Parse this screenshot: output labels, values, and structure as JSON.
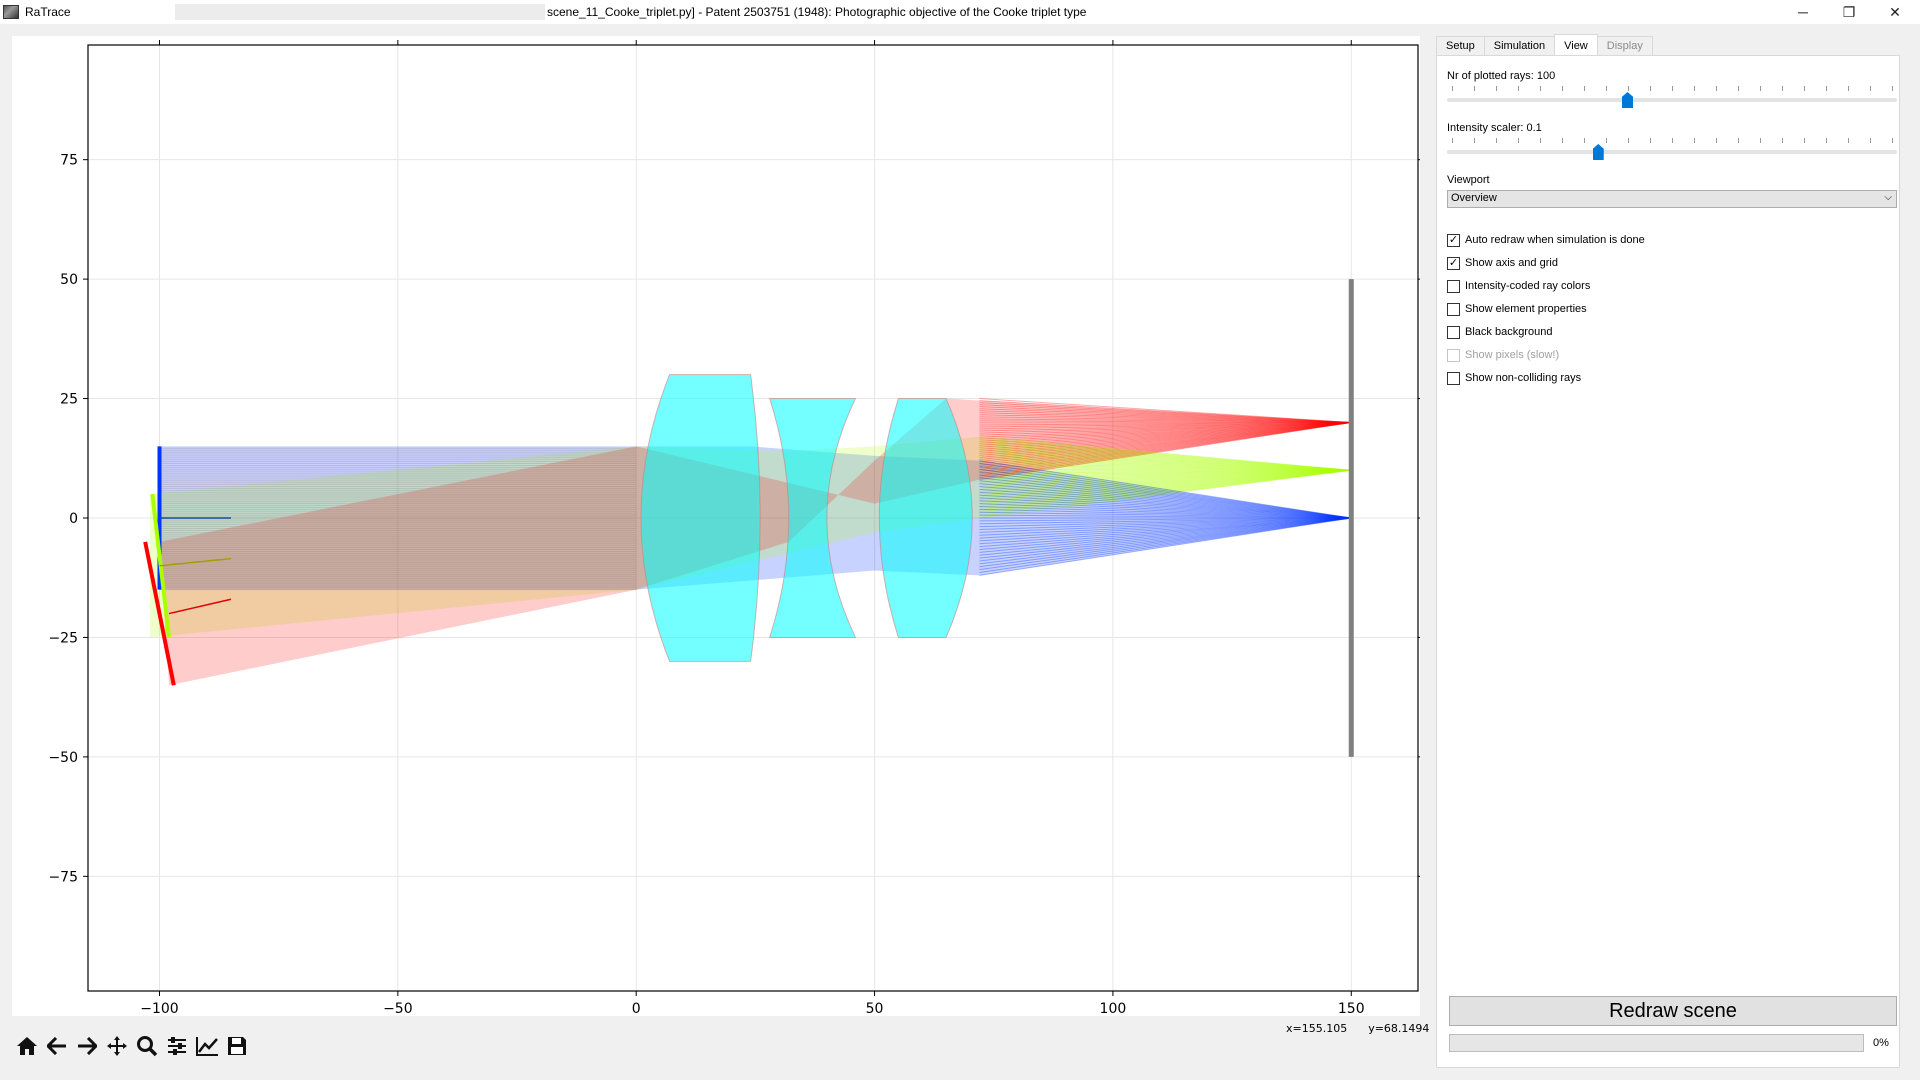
{
  "window": {
    "app_name": "RaTrace",
    "title": "scene_11_Cooke_triplet.py]  -  Patent 2503751 (1948): Photographic objective of the Cooke triplet type",
    "buttons": {
      "minimize": "─",
      "restore": "❐",
      "close": "✕"
    }
  },
  "plot": {
    "x_ticks": [
      "−100",
      "−50",
      "0",
      "50",
      "100",
      "150"
    ],
    "y_ticks": [
      "75",
      "50",
      "25",
      "0",
      "−25",
      "−50",
      "−75"
    ],
    "grid": true,
    "xlim": [
      -115,
      164
    ],
    "ylim": [
      -99,
      99
    ],
    "colors": {
      "lens": "#00ffff",
      "red": "#ff0000",
      "green": "#aaff00",
      "blue": "#0033ff",
      "detector": "#808080"
    }
  },
  "toolbar": {
    "icons": [
      "home-icon",
      "back-arrow-icon",
      "forward-arrow-icon",
      "pan-icon",
      "zoom-icon",
      "configure-subplots-icon",
      "edit-axis-icon",
      "save-icon"
    ]
  },
  "coords": {
    "x": "x=155.105",
    "y": "y=68.1494"
  },
  "panel": {
    "tabs": [
      {
        "label": "Setup",
        "active": false,
        "disabled": false
      },
      {
        "label": "Simulation",
        "active": false,
        "disabled": false
      },
      {
        "label": "View",
        "active": true,
        "disabled": false
      },
      {
        "label": "Display",
        "active": false,
        "disabled": true
      }
    ],
    "rays_label": "Nr of plotted rays: 100",
    "rays_slider_fraction": 0.4,
    "intensity_label": "Intensity scaler: 0.1",
    "intensity_slider_fraction": 0.335,
    "viewport_label": "Viewport",
    "viewport_value": "Overview",
    "checkboxes": [
      {
        "label": "Auto redraw when simulation is done",
        "checked": true,
        "disabled": false
      },
      {
        "label": "Show axis and grid",
        "checked": true,
        "disabled": false
      },
      {
        "label": "Intensity-coded ray colors",
        "checked": false,
        "disabled": false
      },
      {
        "label": "Show element properties",
        "checked": false,
        "disabled": false
      },
      {
        "label": "Black background",
        "checked": false,
        "disabled": false
      },
      {
        "label": "Show pixels (slow!)",
        "checked": false,
        "disabled": true
      },
      {
        "label": "Show non-colliding rays",
        "checked": false,
        "disabled": false
      }
    ],
    "redraw_label": "Redraw scene",
    "progress_text": "0%",
    "progress_fraction": 0
  }
}
